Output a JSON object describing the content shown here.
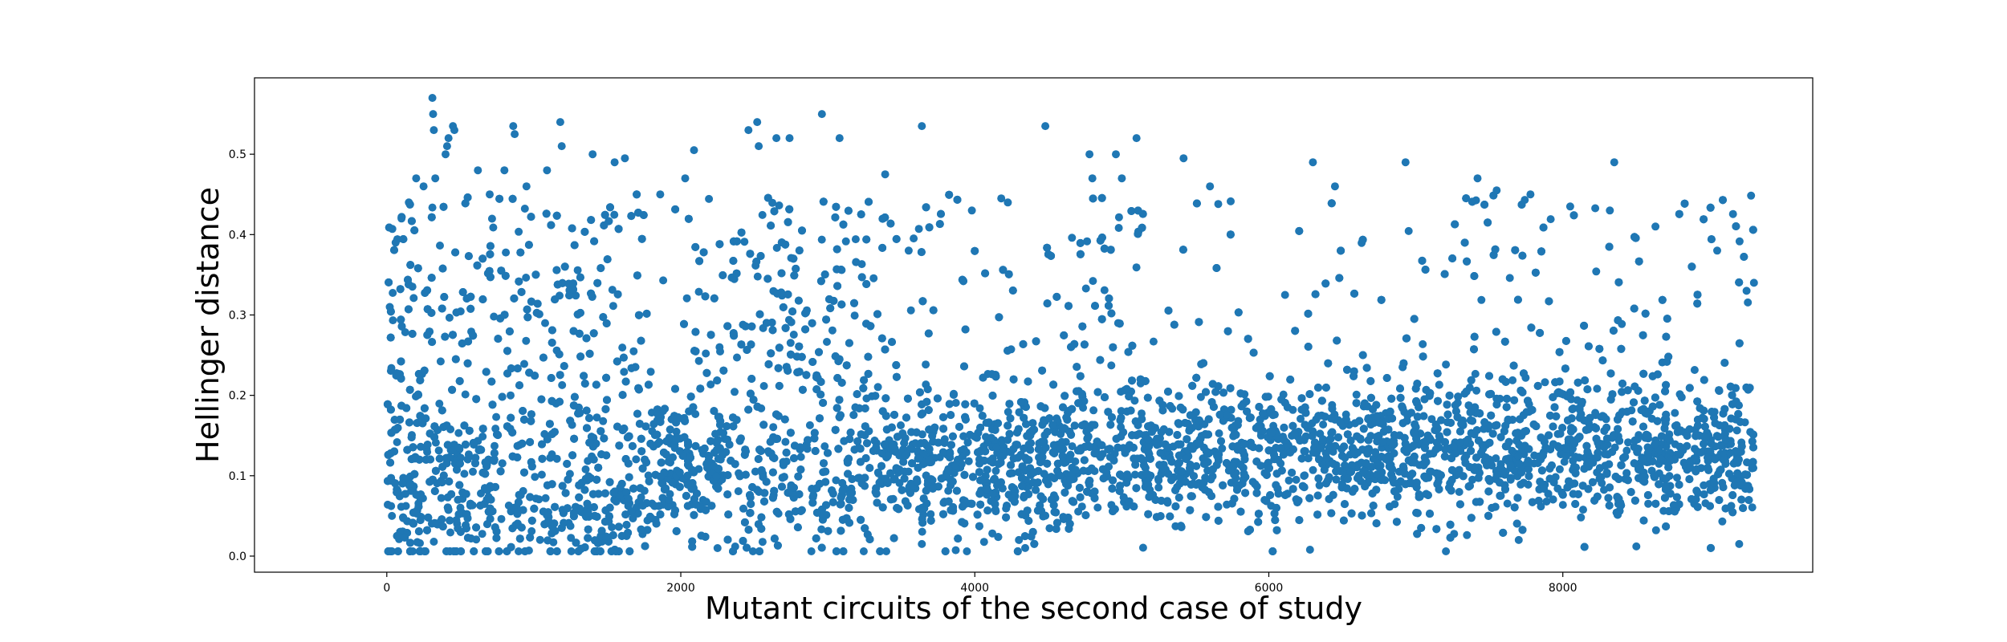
{
  "chart_data": {
    "type": "scatter",
    "title": "",
    "xlabel": "Mutant circuits of the second case of study",
    "ylabel": "Hellinger distance",
    "xlim": [
      -900,
      9700
    ],
    "ylim": [
      -0.02,
      0.595
    ],
    "xticks": [
      0,
      2000,
      4000,
      6000,
      8000
    ],
    "xtick_labels": [
      "0",
      "2000",
      "4000",
      "6000",
      "8000"
    ],
    "yticks": [
      0.0,
      0.1,
      0.2,
      0.3,
      0.4,
      0.5
    ],
    "ytick_labels": [
      "0.0",
      "0.1",
      "0.2",
      "0.3",
      "0.4",
      "0.5"
    ],
    "grid": false,
    "marker_color": "#1f77b4",
    "n_points_approx": 9300,
    "x_range": [
      0,
      9300
    ],
    "points_sample": [
      [
        20,
        0.31
      ],
      [
        35,
        0.05
      ],
      [
        60,
        0.39
      ],
      [
        100,
        0.42
      ],
      [
        150,
        0.44
      ],
      [
        200,
        0.47
      ],
      [
        250,
        0.46
      ],
      [
        310,
        0.57
      ],
      [
        315,
        0.55
      ],
      [
        320,
        0.53
      ],
      [
        330,
        0.47
      ],
      [
        400,
        0.5
      ],
      [
        410,
        0.51
      ],
      [
        420,
        0.52
      ],
      [
        450,
        0.535
      ],
      [
        460,
        0.53
      ],
      [
        620,
        0.48
      ],
      [
        700,
        0.45
      ],
      [
        800,
        0.48
      ],
      [
        860,
        0.535
      ],
      [
        870,
        0.525
      ],
      [
        950,
        0.46
      ],
      [
        1090,
        0.48
      ],
      [
        1180,
        0.54
      ],
      [
        1190,
        0.51
      ],
      [
        1400,
        0.5
      ],
      [
        1550,
        0.49
      ],
      [
        1620,
        0.495
      ],
      [
        1860,
        0.45
      ],
      [
        2030,
        0.47
      ],
      [
        2090,
        0.505
      ],
      [
        2460,
        0.53
      ],
      [
        2520,
        0.54
      ],
      [
        2530,
        0.51
      ],
      [
        2650,
        0.52
      ],
      [
        2740,
        0.52
      ],
      [
        2960,
        0.55
      ],
      [
        3080,
        0.52
      ],
      [
        3390,
        0.475
      ],
      [
        3550,
        0.38
      ],
      [
        3640,
        0.535
      ],
      [
        3980,
        0.43
      ],
      [
        4180,
        0.445
      ],
      [
        4480,
        0.535
      ],
      [
        4780,
        0.5
      ],
      [
        4800,
        0.47
      ],
      [
        4960,
        0.5
      ],
      [
        5000,
        0.47
      ],
      [
        5100,
        0.52
      ],
      [
        5420,
        0.495
      ],
      [
        5600,
        0.46
      ],
      [
        6300,
        0.49
      ],
      [
        6450,
        0.46
      ],
      [
        6930,
        0.49
      ],
      [
        7420,
        0.47
      ],
      [
        7550,
        0.455
      ],
      [
        7780,
        0.45
      ],
      [
        8050,
        0.435
      ],
      [
        8350,
        0.49
      ],
      [
        8320,
        0.43
      ],
      [
        8630,
        0.41
      ],
      [
        9050,
        0.38
      ],
      [
        9250,
        0.33
      ],
      [
        9300,
        0.34
      ],
      [
        2250,
        0.01
      ],
      [
        3640,
        0.015
      ],
      [
        4300,
        0.02
      ],
      [
        6280,
        0.008
      ],
      [
        7700,
        0.02
      ],
      [
        8500,
        0.012
      ],
      [
        9200,
        0.015
      ]
    ]
  }
}
